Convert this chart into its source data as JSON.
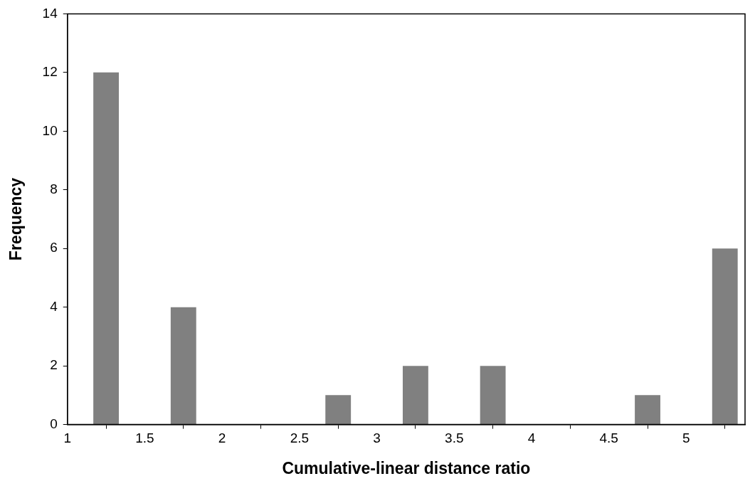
{
  "chart_data": {
    "type": "bar",
    "xlabel": "Cumulative-linear distance ratio",
    "ylabel": "Frequency",
    "x": [
      1.25,
      1.75,
      2.25,
      2.75,
      3.25,
      3.75,
      4.25,
      4.75,
      5.25
    ],
    "values": [
      12,
      4,
      0,
      1,
      2,
      2,
      0,
      1,
      6
    ],
    "color": "#808080",
    "xlim": [
      1,
      5.38
    ],
    "xticks": [
      1,
      1.5,
      2,
      2.5,
      3,
      3.5,
      4,
      4.5,
      5
    ],
    "ylim": [
      0,
      14
    ],
    "yticks": [
      0,
      2,
      4,
      6,
      8,
      10,
      12,
      14
    ],
    "grid": false,
    "legend": false
  }
}
